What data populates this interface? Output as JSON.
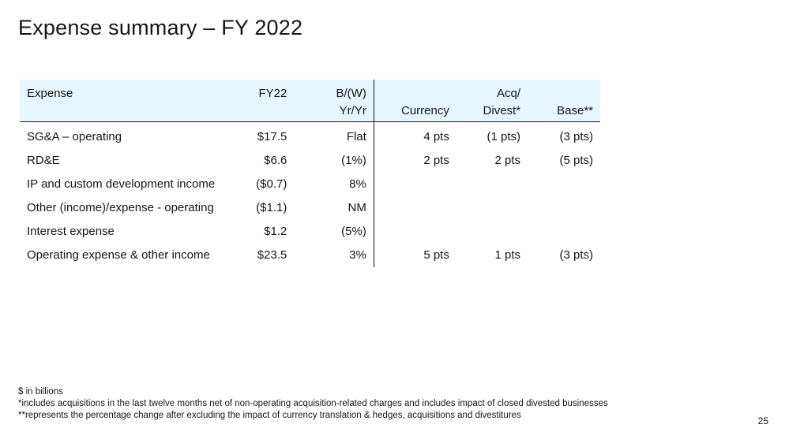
{
  "title": "Expense summary – FY 2022",
  "table": {
    "headers": {
      "expense": "Expense",
      "fy22": "FY22",
      "bw_line1": "B/(W)",
      "bw_line2": "Yr/Yr",
      "currency": "Currency",
      "acq_line1": "Acq/",
      "acq_line2": "Divest*",
      "base": "Base**"
    },
    "rows": [
      {
        "expense": "SG&A – operating",
        "fy22": "$17.5",
        "bw": "Flat",
        "currency": "4 pts",
        "acq": "(1 pts)",
        "base": "(3 pts)"
      },
      {
        "expense": "RD&E",
        "fy22": "$6.6",
        "bw": "(1%)",
        "currency": "2 pts",
        "acq": "2 pts",
        "base": "(5 pts)"
      },
      {
        "expense": "IP and custom development income",
        "fy22": "($0.7)",
        "bw": "8%",
        "currency": "",
        "acq": "",
        "base": ""
      },
      {
        "expense": "Other (income)/expense - operating",
        "fy22": "($1.1)",
        "bw": "NM",
        "currency": "",
        "acq": "",
        "base": ""
      },
      {
        "expense": "Interest expense",
        "fy22": "$1.2",
        "bw": "(5%)",
        "currency": "",
        "acq": "",
        "base": ""
      },
      {
        "expense": "Operating expense & other income",
        "fy22": "$23.5",
        "bw": "3%",
        "currency": "5 pts",
        "acq": "1 pts",
        "base": "(3 pts)"
      }
    ]
  },
  "footnotes": [
    "$ in billions",
    "*includes acquisitions in the last twelve months net of non-operating acquisition-related charges and includes impact of closed divested businesses",
    "**represents the percentage change after excluding the impact of currency translation & hedges, acquisitions and divestitures"
  ],
  "page_number": "25",
  "colors": {
    "header_background": "#e5f6ff",
    "text": "#161616"
  }
}
